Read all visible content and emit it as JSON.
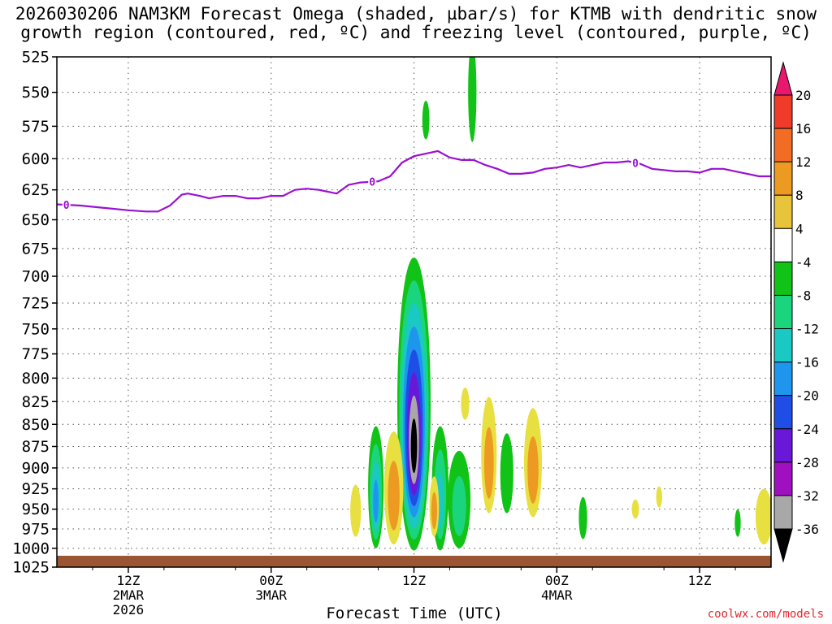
{
  "title_line1": "2026030206 NAM3KM Forecast Omega (shaded, µbar/s) for KTMB with dendritic snow",
  "title_line2": "growth region (contoured, red, ºC) and freezing level (contoured, purple, ºC)",
  "footer": "coolwx.com/models",
  "chart_data": {
    "type": "heatmap",
    "title": "2026030206 NAM3KM Forecast Omega (shaded, µbar/s) for KTMB with dendritic snow growth region (contoured, red, ºC) and freezing level (contoured, purple, ºC)",
    "xlabel": "Forecast Time (UTC)",
    "ylabel": "",
    "x_unit": "hours after 2026-03-02 06Z",
    "xlim": [
      0,
      60
    ],
    "ylim": [
      1025,
      525
    ],
    "y_scale": "pressure (log)",
    "grid": true,
    "y_ticks": [
      525,
      550,
      575,
      600,
      625,
      650,
      675,
      700,
      725,
      750,
      775,
      800,
      825,
      850,
      875,
      900,
      925,
      950,
      975,
      1000,
      1025
    ],
    "x_ticks": [
      {
        "x": 6,
        "lines": [
          "12Z",
          "2MAR",
          "2026"
        ]
      },
      {
        "x": 18,
        "lines": [
          "00Z",
          "3MAR"
        ]
      },
      {
        "x": 30,
        "lines": [
          "12Z"
        ]
      },
      {
        "x": 42,
        "lines": [
          "00Z",
          "4MAR"
        ]
      },
      {
        "x": 54,
        "lines": [
          "12Z"
        ]
      }
    ],
    "colorbar": {
      "labels": [
        20,
        16,
        12,
        8,
        4,
        -4,
        -8,
        -12,
        -16,
        -20,
        -24,
        -28,
        -32,
        -36
      ],
      "bins": [
        {
          "color": "#e8186e"
        },
        {
          "color": "#f03a2a"
        },
        {
          "color": "#f26c24"
        },
        {
          "color": "#ec9a22"
        },
        {
          "color": "#e8c43a"
        },
        {
          "color": "#e8e040"
        },
        {
          "color": "#ffffff"
        },
        {
          "color": "#11c317"
        },
        {
          "color": "#1bd57e"
        },
        {
          "color": "#1ac8c4"
        },
        {
          "color": "#1e96ee"
        },
        {
          "color": "#1f4ee6"
        },
        {
          "color": "#6a18d8"
        },
        {
          "color": "#a010c0"
        },
        {
          "color": "#a8a8a8"
        },
        {
          "color": "#000000"
        }
      ]
    },
    "freezing_level": {
      "color": "#9a10d0",
      "label": "0",
      "label_x": [
        0.8,
        26.5,
        48.6
      ],
      "points": [
        [
          0,
          637
        ],
        [
          2,
          638
        ],
        [
          4,
          640
        ],
        [
          6,
          642
        ],
        [
          7.5,
          643
        ],
        [
          8.5,
          643
        ],
        [
          9.5,
          638
        ],
        [
          10.5,
          629
        ],
        [
          11,
          628
        ],
        [
          12,
          630
        ],
        [
          12.8,
          632
        ],
        [
          14,
          630
        ],
        [
          15,
          630
        ],
        [
          16,
          632
        ],
        [
          17,
          632
        ],
        [
          18,
          630
        ],
        [
          19,
          630
        ],
        [
          20,
          625
        ],
        [
          21,
          624
        ],
        [
          22,
          625
        ],
        [
          23,
          627
        ],
        [
          23.5,
          628
        ],
        [
          24.5,
          621
        ],
        [
          25.5,
          619
        ],
        [
          27,
          618
        ],
        [
          28,
          614
        ],
        [
          29,
          603
        ],
        [
          30,
          598
        ],
        [
          31,
          596
        ],
        [
          32,
          594
        ],
        [
          33,
          599
        ],
        [
          34,
          601
        ],
        [
          35,
          601
        ],
        [
          36,
          605
        ],
        [
          37,
          608
        ],
        [
          38,
          612
        ],
        [
          39,
          612
        ],
        [
          40,
          611
        ],
        [
          41,
          608
        ],
        [
          42,
          607
        ],
        [
          43,
          605
        ],
        [
          44,
          607
        ],
        [
          45,
          605
        ],
        [
          46,
          603
        ],
        [
          47,
          603
        ],
        [
          48,
          602
        ],
        [
          49,
          604
        ],
        [
          50,
          608
        ],
        [
          51,
          609
        ],
        [
          52,
          610
        ],
        [
          53,
          610
        ],
        [
          54,
          611
        ],
        [
          55,
          608
        ],
        [
          56,
          608
        ],
        [
          57,
          610
        ],
        [
          58,
          612
        ],
        [
          59,
          614
        ],
        [
          60,
          614
        ]
      ]
    },
    "omega_features": [
      {
        "x": 30,
        "p_top": 683,
        "p_bottom": 1003,
        "width_h": 2.8,
        "levels": [
          -8,
          -12,
          -16,
          -20,
          -24,
          -28,
          -32,
          -36
        ]
      },
      {
        "x": 26.8,
        "p_top": 852,
        "p_bottom": 1000,
        "width_h": 1.3,
        "levels": [
          -8,
          -12,
          -16,
          -20
        ]
      },
      {
        "x": 28.3,
        "p_top": 858,
        "p_bottom": 995,
        "width_h": 1.6,
        "levels": [
          4,
          8
        ]
      },
      {
        "x": 32.2,
        "p_top": 852,
        "p_bottom": 1003,
        "width_h": 1.4,
        "levels": [
          -8,
          -12,
          -16
        ]
      },
      {
        "x": 33.8,
        "p_top": 880,
        "p_bottom": 1000,
        "width_h": 1.9,
        "levels": [
          -8,
          -12
        ]
      },
      {
        "x": 31.7,
        "p_top": 910,
        "p_bottom": 985,
        "width_h": 0.8,
        "levels": [
          4,
          8
        ]
      },
      {
        "x": 25.1,
        "p_top": 920,
        "p_bottom": 985,
        "width_h": 0.9,
        "levels": [
          4
        ]
      },
      {
        "x": 34.3,
        "p_top": 810,
        "p_bottom": 845,
        "width_h": 0.7,
        "levels": [
          4
        ]
      },
      {
        "x": 36.3,
        "p_top": 820,
        "p_bottom": 955,
        "width_h": 1.3,
        "levels": [
          4,
          8
        ]
      },
      {
        "x": 37.8,
        "p_top": 860,
        "p_bottom": 955,
        "width_h": 1.1,
        "levels": [
          -8
        ]
      },
      {
        "x": 40,
        "p_top": 832,
        "p_bottom": 960,
        "width_h": 1.5,
        "levels": [
          4,
          8
        ]
      },
      {
        "x": 34.9,
        "p_top": 515,
        "p_bottom": 587,
        "width_h": 0.7,
        "levels": [
          -8
        ]
      },
      {
        "x": 31,
        "p_top": 556,
        "p_bottom": 585,
        "width_h": 0.6,
        "levels": [
          -8
        ]
      },
      {
        "x": 44.2,
        "p_top": 935,
        "p_bottom": 988,
        "width_h": 0.7,
        "levels": [
          -8
        ]
      },
      {
        "x": 48.6,
        "p_top": 938,
        "p_bottom": 962,
        "width_h": 0.6,
        "levels": [
          4
        ]
      },
      {
        "x": 50.6,
        "p_top": 922,
        "p_bottom": 948,
        "width_h": 0.5,
        "levels": [
          4
        ]
      },
      {
        "x": 57.2,
        "p_top": 950,
        "p_bottom": 985,
        "width_h": 0.5,
        "levels": [
          -8
        ]
      },
      {
        "x": 59.4,
        "p_top": 925,
        "p_bottom": 995,
        "width_h": 1.4,
        "levels": [
          4
        ]
      }
    ]
  }
}
